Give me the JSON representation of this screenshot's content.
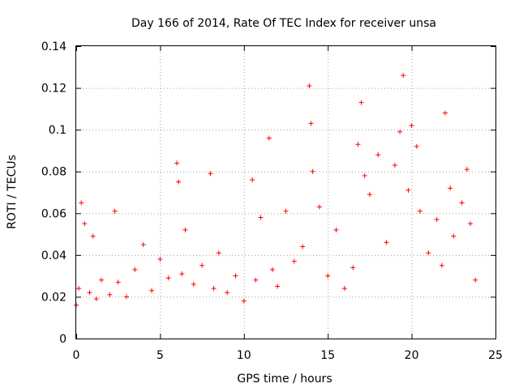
{
  "chart_data": {
    "type": "scatter",
    "title": "Day 166 of 2014, Rate Of TEC Index for receiver unsa",
    "xlabel": "GPS time / hours",
    "ylabel": "ROTI / TECUs",
    "xlim": [
      0,
      25
    ],
    "ylim": [
      0,
      0.14
    ],
    "xticks": [
      0,
      5,
      10,
      15,
      20,
      25
    ],
    "xtick_labels": [
      "0",
      "5",
      "10",
      "15",
      "20",
      "25"
    ],
    "yticks": [
      0,
      0.02,
      0.04,
      0.06,
      0.08,
      0.1,
      0.12,
      0.14
    ],
    "ytick_labels": [
      "0",
      "0.02",
      "0.04",
      "0.06",
      "0.08",
      "0.1",
      "0.12",
      "0.14"
    ],
    "grid": true,
    "marker": "+",
    "color": "#ff0000",
    "series": [
      {
        "name": "ROTI",
        "x": [
          0.0,
          0.15,
          0.3,
          0.5,
          0.8,
          1.0,
          1.2,
          1.5,
          2.0,
          2.3,
          2.5,
          3.0,
          3.5,
          4.0,
          4.5,
          5.0,
          5.5,
          6.0,
          6.1,
          6.3,
          6.5,
          7.0,
          7.5,
          8.0,
          8.2,
          8.5,
          9.0,
          9.5,
          10.0,
          10.5,
          10.7,
          11.0,
          11.5,
          11.7,
          12.0,
          12.5,
          13.0,
          13.5,
          13.9,
          14.0,
          14.1,
          14.5,
          15.0,
          15.5,
          16.0,
          16.5,
          16.8,
          17.0,
          17.2,
          17.5,
          18.0,
          18.5,
          19.0,
          19.3,
          19.5,
          19.8,
          20.0,
          20.3,
          20.5,
          21.0,
          21.5,
          21.8,
          22.0,
          22.3,
          22.5,
          23.0,
          23.3,
          23.5,
          23.8
        ],
        "y": [
          0.016,
          0.024,
          0.065,
          0.055,
          0.022,
          0.049,
          0.019,
          0.028,
          0.021,
          0.061,
          0.027,
          0.02,
          0.033,
          0.045,
          0.023,
          0.038,
          0.029,
          0.084,
          0.075,
          0.031,
          0.052,
          0.026,
          0.035,
          0.079,
          0.024,
          0.041,
          0.022,
          0.03,
          0.018,
          0.076,
          0.028,
          0.058,
          0.096,
          0.033,
          0.025,
          0.061,
          0.037,
          0.044,
          0.121,
          0.103,
          0.08,
          0.063,
          0.03,
          0.052,
          0.024,
          0.034,
          0.093,
          0.113,
          0.078,
          0.069,
          0.088,
          0.046,
          0.083,
          0.099,
          0.126,
          0.071,
          0.102,
          0.092,
          0.061,
          0.041,
          0.057,
          0.035,
          0.108,
          0.072,
          0.049,
          0.065,
          0.081,
          0.055,
          0.028
        ]
      }
    ]
  }
}
